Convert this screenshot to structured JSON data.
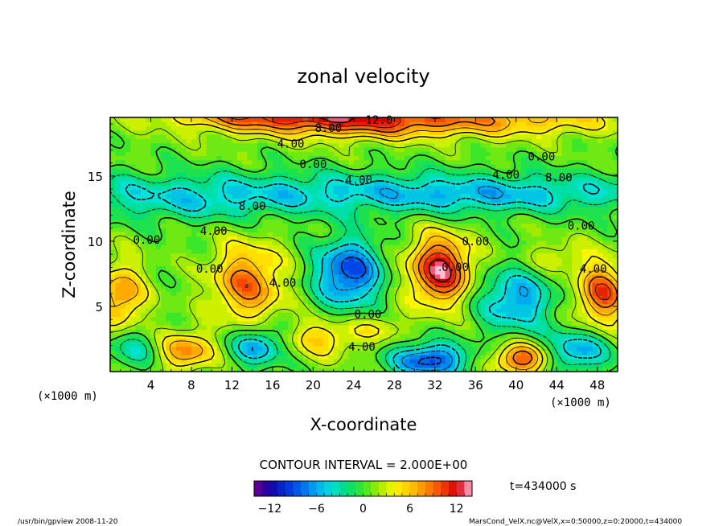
{
  "chart_data": {
    "type": "heatmap",
    "title": "zonal velocity",
    "xlabel": "X-coordinate",
    "ylabel": "Z-coordinate",
    "x_unit_label_left": "(×1000 m)",
    "x_unit_label_right": "(×1000 m)",
    "xlim": [
      0,
      50
    ],
    "ylim": [
      0,
      19.5
    ],
    "x_ticks": [
      4,
      8,
      12,
      16,
      20,
      24,
      28,
      32,
      36,
      40,
      44,
      48
    ],
    "y_ticks": [
      5,
      10,
      15
    ],
    "contour_interval_text": "CONTOUR INTERVAL = 2.000E+00",
    "time_label": "t=434000 s",
    "colorbar": {
      "min": -14,
      "max": 14,
      "step": 1,
      "ticks": [
        -12,
        -6,
        0,
        6,
        12
      ]
    },
    "contour_labels": [
      {
        "text": "12.0",
        "x": 26.5,
        "y": 19.0
      },
      {
        "text": "8.00",
        "x": 21.5,
        "y": 18.4
      },
      {
        "text": "4.00",
        "x": 17.8,
        "y": 17.2
      },
      {
        "text": "0.00",
        "x": 20.0,
        "y": 15.6
      },
      {
        "text": "4.00",
        "x": 24.5,
        "y": 14.4
      },
      {
        "text": "0.00",
        "x": 42.5,
        "y": 16.2
      },
      {
        "text": "4.00",
        "x": 39.0,
        "y": 14.8
      },
      {
        "text": "8.00",
        "x": 44.2,
        "y": 14.6
      },
      {
        "text": "8.00",
        "x": 14.0,
        "y": 12.4
      },
      {
        "text": "4.00",
        "x": 10.2,
        "y": 10.5
      },
      {
        "text": "0.00",
        "x": 3.6,
        "y": 9.8
      },
      {
        "text": "0.00",
        "x": 9.8,
        "y": 7.6
      },
      {
        "text": "0.00",
        "x": 36.0,
        "y": 9.7
      },
      {
        "text": "0.00",
        "x": 46.4,
        "y": 10.9
      },
      {
        "text": "0.00",
        "x": 34.0,
        "y": 7.7
      },
      {
        "text": "4.00",
        "x": 47.6,
        "y": 7.6
      },
      {
        "text": "4.00",
        "x": 17.0,
        "y": 6.5
      },
      {
        "text": "0.00",
        "x": 25.4,
        "y": 4.1
      },
      {
        "text": "4.00",
        "x": 24.8,
        "y": 1.6
      }
    ],
    "features": [
      {
        "x": 26,
        "z": 19.4,
        "sx": 14,
        "sz": 1.4,
        "u": 10
      },
      {
        "x": 14,
        "z": 19.8,
        "sx": 9,
        "sz": 1.1,
        "u": 5
      },
      {
        "x": 44,
        "z": 19.3,
        "sx": 8,
        "sz": 1.2,
        "u": 3
      },
      {
        "x": 25,
        "z": 13.8,
        "sx": 40,
        "sz": 1.6,
        "u": -5
      },
      {
        "x": 8,
        "z": 12.6,
        "sx": 10,
        "sz": 1.3,
        "u": -2
      },
      {
        "x": 36,
        "z": 13.4,
        "sx": 10,
        "sz": 1.2,
        "u": -2
      },
      {
        "x": 13.5,
        "z": 6.8,
        "sx": 3.4,
        "sz": 3.0,
        "u": 8
      },
      {
        "x": 23.5,
        "z": 7.6,
        "sx": 3.2,
        "sz": 2.6,
        "u": -10
      },
      {
        "x": 32.5,
        "z": 7.8,
        "sx": 3.0,
        "sz": 2.6,
        "u": 12
      },
      {
        "x": 40.0,
        "z": 5.5,
        "sx": 3.8,
        "sz": 2.4,
        "u": -7
      },
      {
        "x": 48.5,
        "z": 6.0,
        "sx": 2.6,
        "sz": 2.4,
        "u": 9
      },
      {
        "x": 1.0,
        "z": 5.8,
        "sx": 2.4,
        "sz": 2.6,
        "u": 7
      },
      {
        "x": 7.5,
        "z": 1.6,
        "sx": 2.6,
        "sz": 1.5,
        "u": 7
      },
      {
        "x": 14.5,
        "z": 2.0,
        "sx": 2.6,
        "sz": 1.5,
        "u": -7
      },
      {
        "x": 21.0,
        "z": 2.6,
        "sx": 3.4,
        "sz": 1.4,
        "u": 5
      },
      {
        "x": 31.5,
        "z": 0.9,
        "sx": 3.6,
        "sz": 1.3,
        "u": -10
      },
      {
        "x": 40.5,
        "z": 1.0,
        "sx": 2.8,
        "sz": 1.2,
        "u": 9
      },
      {
        "x": 46.0,
        "z": 1.6,
        "sx": 3.0,
        "sz": 1.5,
        "u": -7
      },
      {
        "x": 2.0,
        "z": 1.8,
        "sx": 2.5,
        "sz": 1.6,
        "u": -4
      },
      {
        "x": 26.5,
        "z": 3.4,
        "sx": 2.4,
        "sz": 1.2,
        "u": 3
      },
      {
        "x": 44.0,
        "z": 8.8,
        "sx": 3.0,
        "sz": 1.2,
        "u": 3
      }
    ]
  },
  "footer": {
    "left": "/usr/bin/gpview   2008-11-20",
    "right": "MarsCond_VelX.nc@VelX,x=0:50000,z=0:20000,t=434000"
  }
}
